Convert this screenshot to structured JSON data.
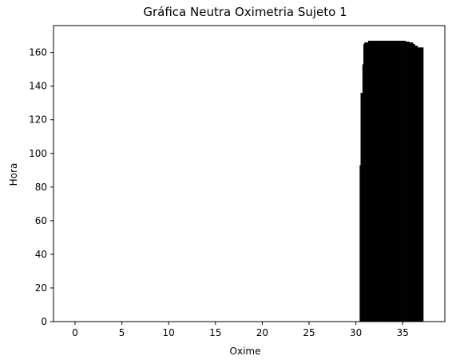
{
  "chart_data": {
    "type": "bar",
    "title": "Gráfica Neutra Oximetria Sujeto 1",
    "xlabel": "Oxime",
    "ylabel": "Hora",
    "xlim": [
      -2.3,
      39.5
    ],
    "ylim": [
      0,
      176
    ],
    "xticks": [
      0,
      5,
      10,
      15,
      20,
      25,
      30,
      35
    ],
    "yticks": [
      0,
      20,
      40,
      60,
      80,
      100,
      120,
      140,
      160
    ],
    "grid": false,
    "bar_color": "#000000",
    "x": [
      30.4,
      30.5,
      30.6,
      30.7,
      30.8,
      30.9,
      31.0,
      31.1,
      31.2,
      31.3,
      31.4,
      31.5,
      31.6,
      31.7,
      31.8,
      31.9,
      32.0,
      32.1,
      32.2,
      32.3,
      32.4,
      32.5,
      32.6,
      32.7,
      32.8,
      32.9,
      33.0,
      33.1,
      33.2,
      33.3,
      33.4,
      33.5,
      33.6,
      33.7,
      33.8,
      33.9,
      34.0,
      34.1,
      34.2,
      34.3,
      34.4,
      34.5,
      34.6,
      34.7,
      34.8,
      34.9,
      35.0,
      35.1,
      35.2,
      35.3,
      35.4,
      35.5,
      35.6,
      35.7,
      35.8,
      35.9,
      36.0,
      36.1,
      36.2,
      36.3,
      36.4,
      36.5,
      36.6,
      36.7,
      36.8,
      36.9,
      37.0,
      37.1
    ],
    "values": [
      93,
      136,
      136,
      153,
      165,
      166,
      166,
      166,
      166,
      167,
      167,
      167,
      167,
      167,
      167,
      167,
      167,
      167,
      167,
      167,
      167,
      167,
      167,
      167,
      167,
      167,
      167,
      167,
      167,
      167,
      167,
      167,
      167,
      167,
      167,
      167,
      167,
      167,
      167,
      167,
      167,
      167,
      167,
      167,
      167,
      167,
      167,
      167,
      167,
      166.5,
      166.5,
      166.5,
      166.5,
      166,
      166,
      166,
      166,
      165,
      165,
      164,
      164,
      164,
      163,
      163,
      163,
      163,
      163,
      163
    ]
  }
}
